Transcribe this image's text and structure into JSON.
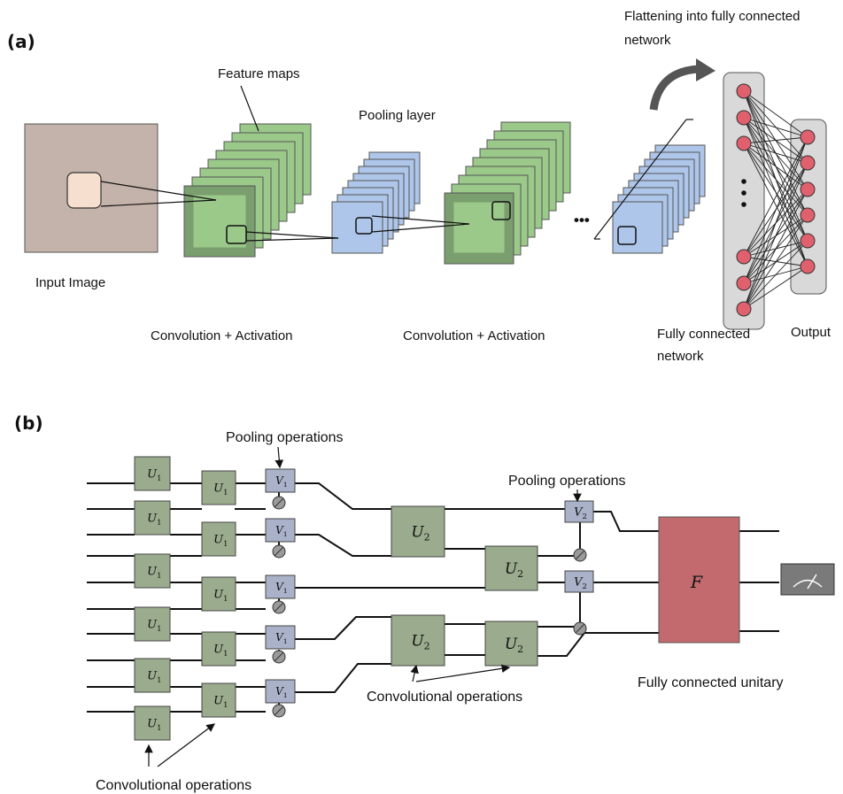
{
  "panel_a": {
    "label": "(a)",
    "input_image": "Input Image",
    "feature_maps": "Feature maps",
    "pooling_layer": "Pooling layer",
    "conv_activation_1": "Convolution + Activation",
    "conv_activation_2": "Convolution + Activation",
    "flattening_line1": "Flattening into fully connected",
    "flattening_line2": "network",
    "fc_line1": "Fully connected",
    "fc_line2": "network",
    "output": "Output",
    "ellipsis": "•••"
  },
  "panel_b": {
    "label": "(b)",
    "pooling_ops_1": "Pooling operations",
    "pooling_ops_2": "Pooling operations",
    "conv_ops_1": "Convolutional operations",
    "conv_ops_2": "Convolutional operations",
    "fc_unitary": "Fully connected unitary",
    "gates": {
      "u1": "U",
      "u1_sub": "1",
      "u2": "U",
      "u2_sub": "2",
      "v1": "V",
      "v1_sub": "1",
      "v2": "V",
      "v2_sub": "2",
      "f": "F"
    }
  },
  "colors": {
    "input": "#c4b3aa",
    "input_patch": "#f7dfd0",
    "feature_map": "#9bc98a",
    "feature_dark": "#7a9e6e",
    "pool": "#aec6ea",
    "gate_green": "#9aab8e",
    "gate_blue": "#a9b2c9",
    "f_block": "#c26a6e",
    "node": "#e0606e",
    "fc_panel": "#d9d9d9"
  }
}
